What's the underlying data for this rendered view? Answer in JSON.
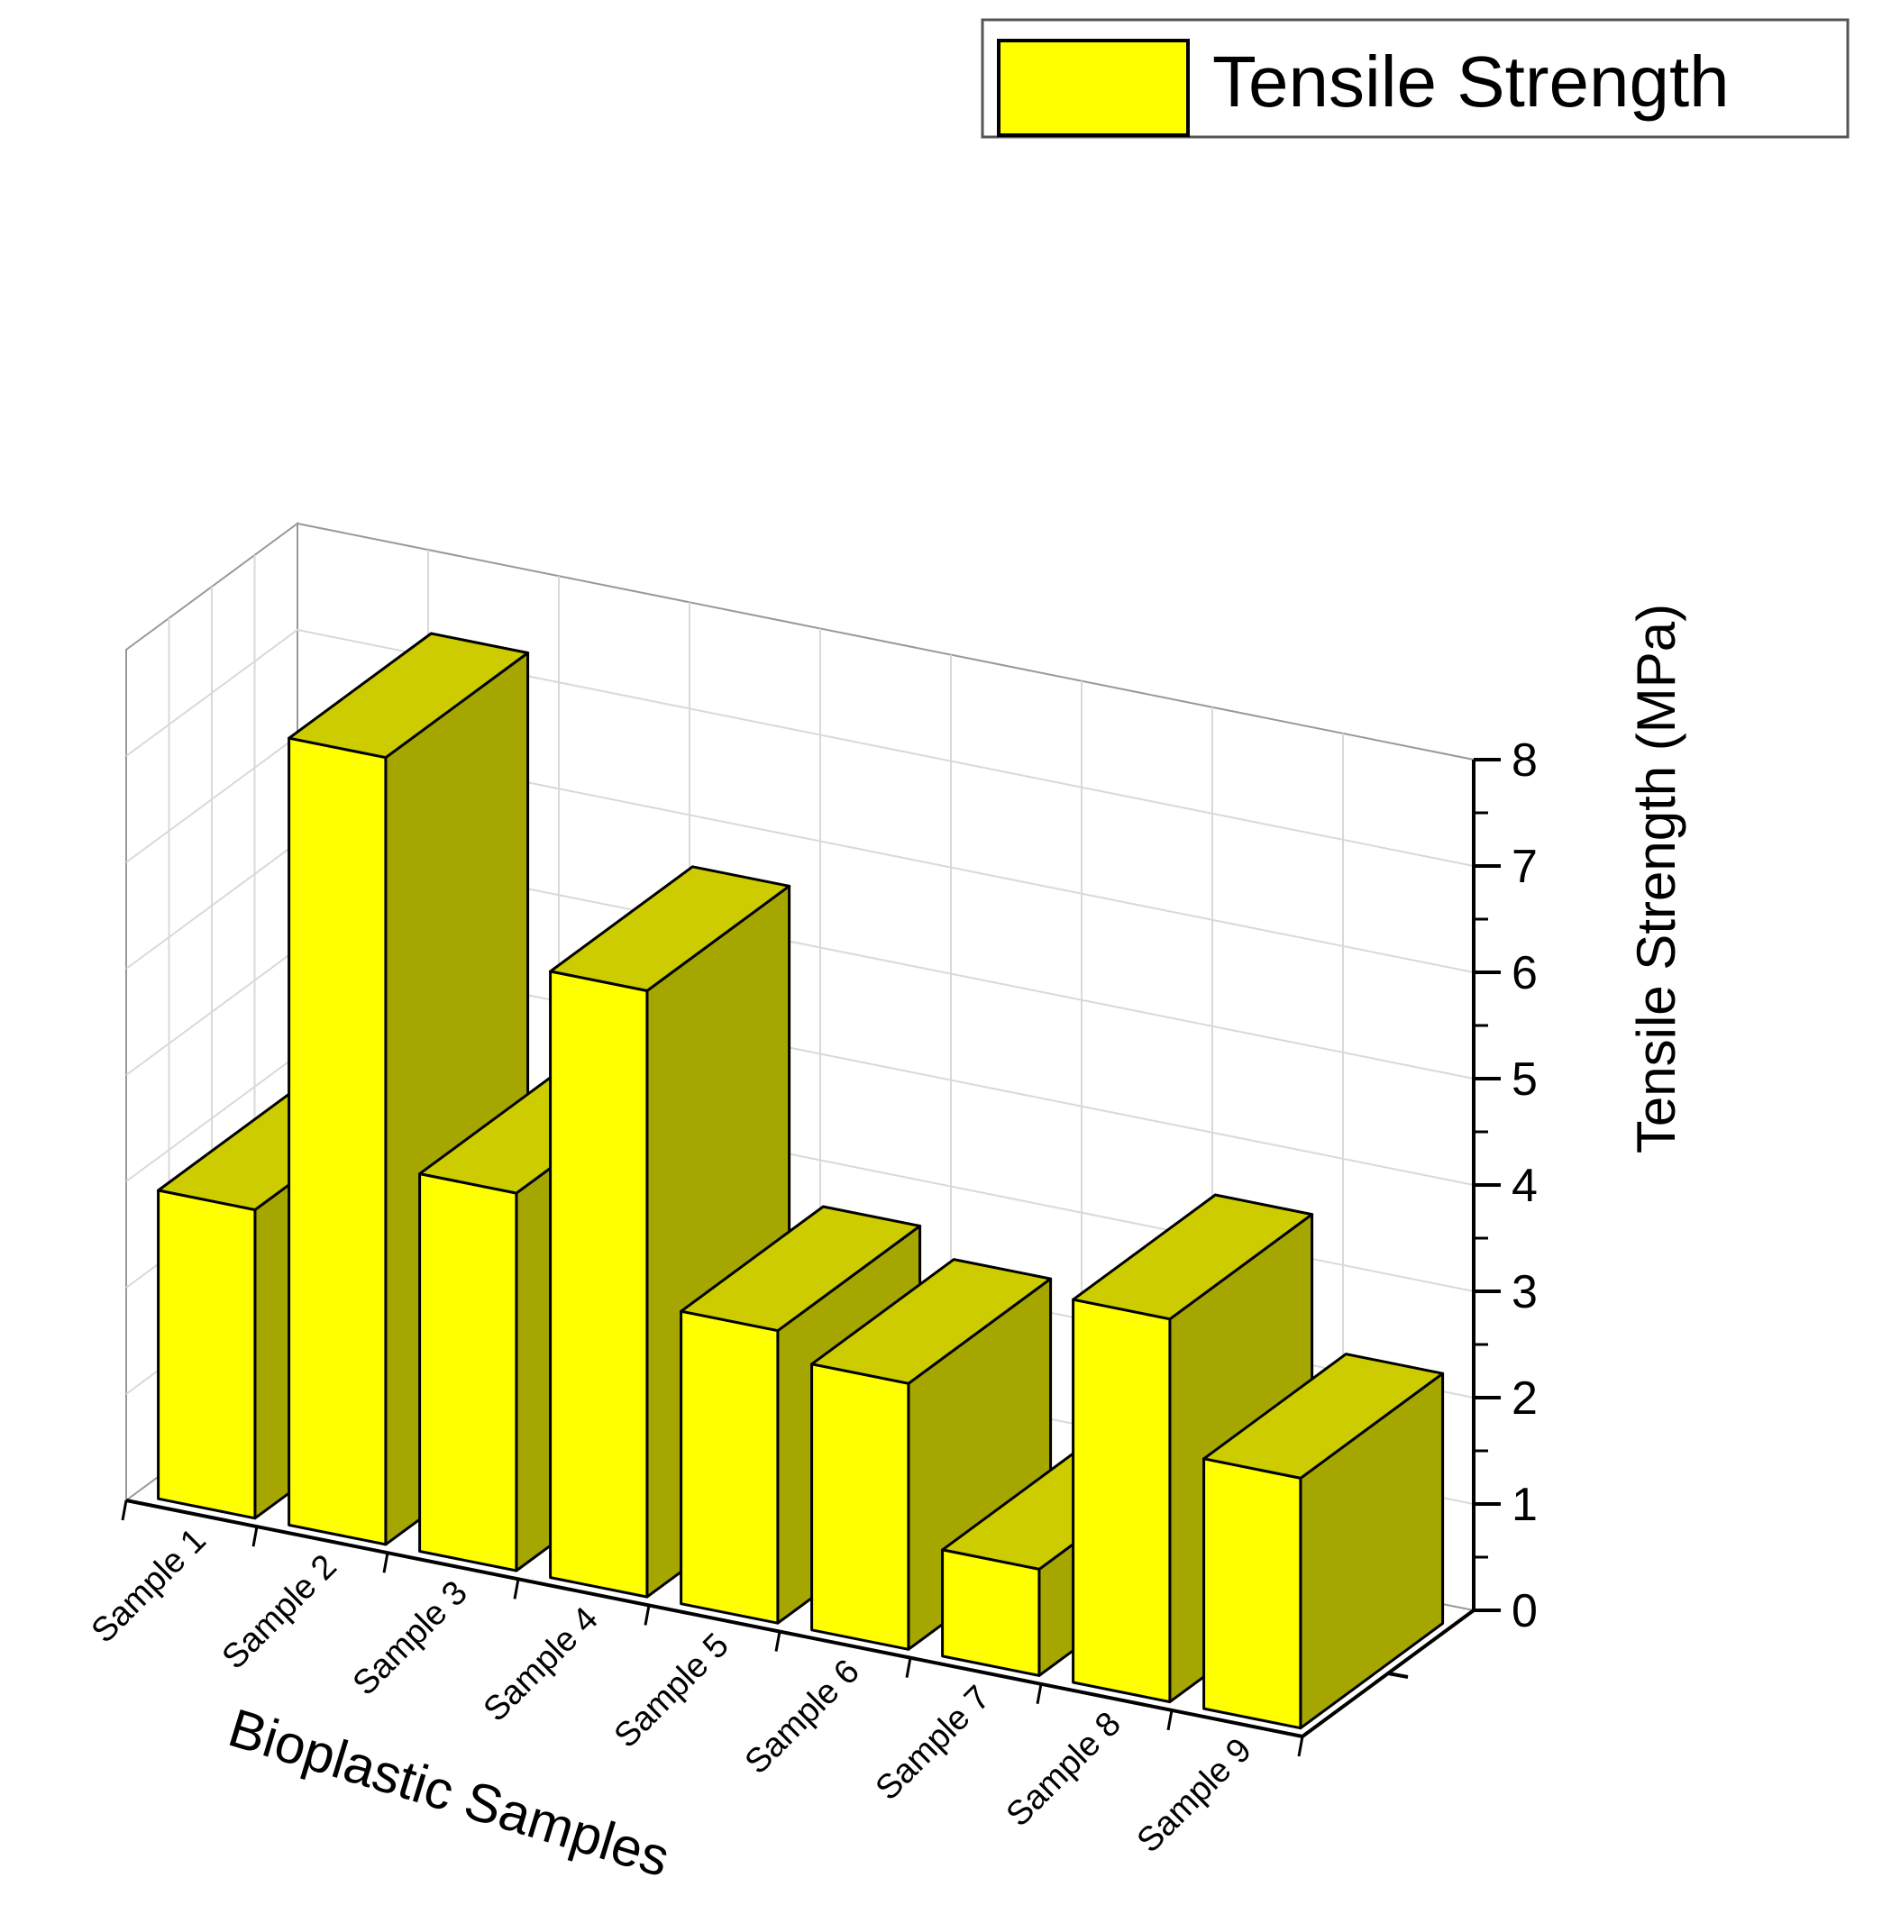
{
  "chart_data": {
    "type": "bar",
    "categories": [
      "Sample 1",
      "Sample 2",
      "Sample 3",
      "Sample 4",
      "Sample 5",
      "Sample 6",
      "Sample 7",
      "Sample 8",
      "Sample 9"
    ],
    "series": [
      {
        "name": "Tensile Strength",
        "values": [
          2.9,
          7.4,
          3.55,
          5.7,
          2.75,
          2.5,
          1.0,
          3.6,
          2.35
        ],
        "front_color": "#ffff00",
        "top_color": "#cccc00",
        "side_color": "#a6a600"
      }
    ],
    "xlabel": "Bioplastic Samples",
    "ylabel": "Tensile Strength (MPa)",
    "ylim": [
      0,
      8
    ],
    "yticks": [
      "0",
      "1",
      "2",
      "3",
      "4",
      "5",
      "6",
      "7",
      "8"
    ],
    "legend": "top-right",
    "grid": true
  }
}
